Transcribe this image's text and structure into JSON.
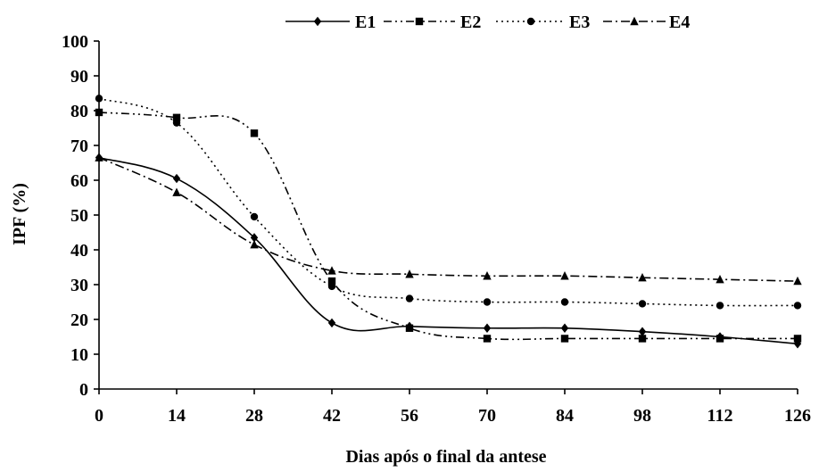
{
  "chart_data": {
    "type": "line",
    "title": "",
    "xlabel": "Dias após o final da antese",
    "ylabel": "IPF (%)",
    "x": [
      0,
      14,
      28,
      42,
      56,
      70,
      84,
      98,
      112,
      126
    ],
    "x_tick_labels": [
      "0",
      "14",
      "28",
      "42",
      "56",
      "70",
      "84",
      "98",
      "112",
      "126"
    ],
    "y_tick_labels": [
      "0",
      "10",
      "20",
      "30",
      "40",
      "50",
      "60",
      "70",
      "80",
      "90",
      "100"
    ],
    "xlim": [
      0,
      126
    ],
    "ylim": [
      0,
      100
    ],
    "grid": false,
    "legend_position": "top",
    "series": [
      {
        "name": "E1",
        "marker": "diamond",
        "dash": "solid",
        "values": [
          66.5,
          60.5,
          43.5,
          19.0,
          18.0,
          17.5,
          17.5,
          16.5,
          15.0,
          13.0
        ]
      },
      {
        "name": "E2",
        "marker": "square",
        "dash": "dashdotdot",
        "values": [
          79.5,
          78.0,
          73.5,
          31.0,
          17.5,
          14.5,
          14.5,
          14.5,
          14.5,
          14.5
        ]
      },
      {
        "name": "E3",
        "marker": "circle",
        "dash": "dotted",
        "values": [
          83.5,
          76.5,
          49.5,
          29.5,
          26.0,
          25.0,
          25.0,
          24.5,
          24.0,
          24.0
        ]
      },
      {
        "name": "E4",
        "marker": "triangle",
        "dash": "dashdot",
        "values": [
          66.5,
          56.5,
          41.5,
          34.0,
          33.0,
          32.5,
          32.5,
          32.0,
          31.5,
          31.0
        ]
      }
    ]
  }
}
